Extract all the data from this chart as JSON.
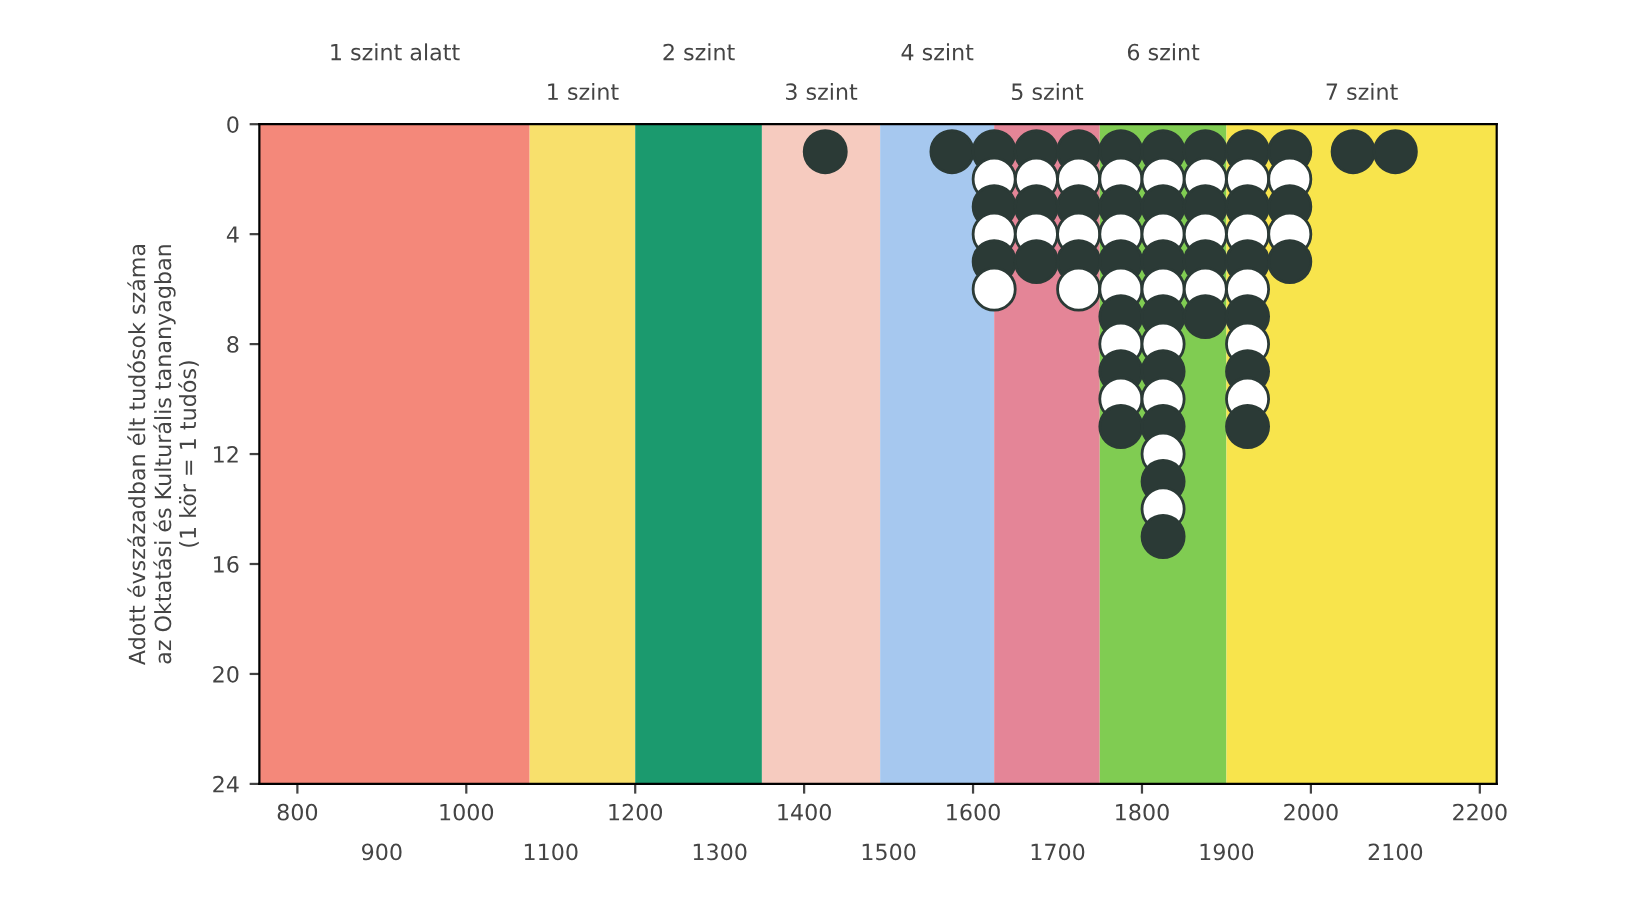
{
  "chart_data": {
    "type": "scatter",
    "ylabel": "Adott évszázadban élt tudósok száma\naz Oktatási és Kulturális tananyagban\n(1 kör = 1 tudós)",
    "xlim": [
      755,
      2220
    ],
    "ylim": [
      24,
      0
    ],
    "xticks": [
      800,
      1000,
      1200,
      1400,
      1600,
      1800,
      2000,
      2200
    ],
    "x2lim": [
      755,
      2220
    ],
    "x2ticks": [
      900,
      1100,
      1300,
      1500,
      1700,
      1900,
      2100
    ],
    "yticks": [
      0,
      4,
      8,
      12,
      16,
      20,
      24
    ],
    "grid": false,
    "marker": "circle",
    "bands": [
      {
        "axis": "x",
        "from": 755,
        "to": 1075,
        "label": "1 szint alatt",
        "color": "#f4887a"
      },
      {
        "axis": "x",
        "from": 1075,
        "to": 1200,
        "label": "1 szint",
        "color": "#f8e06c"
      },
      {
        "axis": "x",
        "from": 1200,
        "to": 1350,
        "label": "2 szint",
        "color": "#1b9a6e"
      },
      {
        "axis": "x",
        "from": 1350,
        "to": 1490,
        "label": "3 szint",
        "color": "#f6cbbf"
      },
      {
        "axis": "x",
        "from": 1490,
        "to": 1625,
        "label": "4 szint",
        "color": "#a6c8ef"
      },
      {
        "axis": "x",
        "from": 1625,
        "to": 1750,
        "label": "5 szint",
        "color": "#e48597"
      },
      {
        "axis": "x",
        "from": 1750,
        "to": 1900,
        "label": "6 szint",
        "color": "#80cc52"
      },
      {
        "axis": "x",
        "from": 1900,
        "to": 2220,
        "label": "7 szint",
        "color": "#f8e44c"
      }
    ],
    "series": [
      {
        "x": [
          1425,
          1575,
          1625,
          1625,
          1625,
          1625,
          1625,
          1625,
          1675,
          1675,
          1675,
          1675,
          1675,
          1725,
          1725,
          1725,
          1725,
          1725,
          1725,
          1775,
          1775,
          1775,
          1775,
          1775,
          1775,
          1775,
          1775,
          1775,
          1775,
          1775,
          1825,
          1825,
          1825,
          1825,
          1825,
          1825,
          1825,
          1825,
          1825,
          1825,
          1825,
          1825,
          1825,
          1825,
          1825,
          1875,
          1875,
          1875,
          1875,
          1875,
          1875,
          1875,
          1925,
          1925,
          1925,
          1925,
          1925,
          1925,
          1925,
          1925,
          1925,
          1925,
          1925,
          1975,
          1975,
          1975,
          1975,
          1975,
          2050,
          2100
        ],
        "values": [
          1,
          1,
          1,
          2,
          3,
          4,
          5,
          6,
          1,
          2,
          3,
          4,
          5,
          1,
          2,
          3,
          4,
          5,
          6,
          1,
          2,
          3,
          4,
          5,
          6,
          7,
          8,
          9,
          10,
          11,
          1,
          2,
          3,
          4,
          5,
          6,
          7,
          8,
          9,
          10,
          11,
          12,
          13,
          14,
          15,
          1,
          2,
          3,
          4,
          5,
          6,
          7,
          1,
          2,
          3,
          4,
          5,
          6,
          7,
          8,
          9,
          10,
          11,
          1,
          2,
          3,
          4,
          5,
          1,
          1
        ],
        "colors": [
          "#2b3a36",
          "#2b3a36",
          "#2b3a36",
          "#ffffff",
          "#2b3a36",
          "#ffffff",
          "#2b3a36",
          "#ffffff",
          "#2b3a36",
          "#ffffff",
          "#2b3a36",
          "#ffffff",
          "#2b3a36",
          "#2b3a36",
          "#ffffff",
          "#2b3a36",
          "#ffffff",
          "#2b3a36",
          "#ffffff",
          "#2b3a36",
          "#ffffff",
          "#2b3a36",
          "#ffffff",
          "#2b3a36",
          "#ffffff",
          "#2b3a36",
          "#ffffff",
          "#2b3a36",
          "#ffffff",
          "#2b3a36",
          "#2b3a36",
          "#ffffff",
          "#2b3a36",
          "#ffffff",
          "#2b3a36",
          "#ffffff",
          "#2b3a36",
          "#ffffff",
          "#2b3a36",
          "#ffffff",
          "#2b3a36",
          "#ffffff",
          "#2b3a36",
          "#ffffff",
          "#2b3a36",
          "#2b3a36",
          "#ffffff",
          "#2b3a36",
          "#ffffff",
          "#2b3a36",
          "#ffffff",
          "#2b3a36",
          "#2b3a36",
          "#ffffff",
          "#2b3a36",
          "#ffffff",
          "#2b3a36",
          "#ffffff",
          "#2b3a36",
          "#ffffff",
          "#2b3a36",
          "#ffffff",
          "#2b3a36",
          "#2b3a36",
          "#ffffff",
          "#2b3a36",
          "#ffffff",
          "#2b3a36",
          "#2b3a36",
          "#2b3a36"
        ]
      }
    ]
  }
}
